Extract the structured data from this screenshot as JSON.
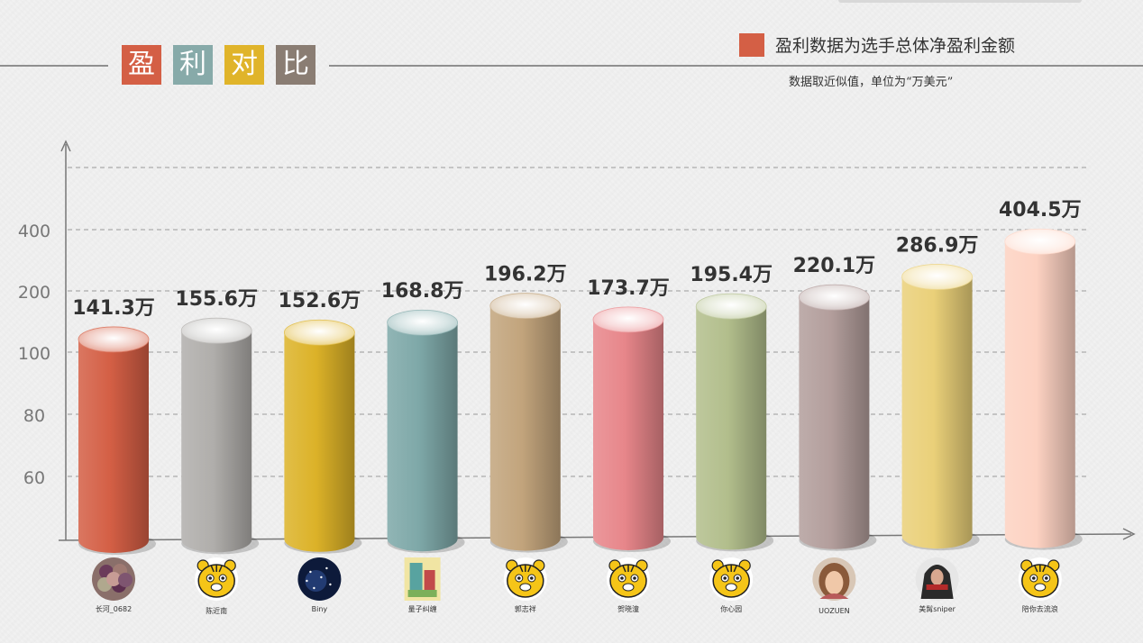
{
  "title_chars": [
    {
      "char": "盈",
      "color": "#d45f45"
    },
    {
      "char": "利",
      "color": "#87aaa9"
    },
    {
      "char": "对",
      "color": "#e0b42a"
    },
    {
      "char": "比",
      "color": "#8a7d73"
    }
  ],
  "legend": {
    "label": "盈利数据为选手总体净盈利金额",
    "color": "#d45f45"
  },
  "note": "数据取近似值，单位为“万美元”",
  "chart_data": {
    "type": "bar",
    "style": "3d-cylinder",
    "grid": "dashed-horizontal",
    "y_ticks": [
      60,
      80,
      100,
      200,
      400
    ],
    "value_suffix": "万",
    "categories": [
      "长河_0682",
      "陈近南",
      "Biny",
      "量子纠缠",
      "郭志祥",
      "贺晓潼",
      "你心园",
      "UOZUEN",
      "美髯sniper",
      "陪你去流浪"
    ],
    "values": [
      141.3,
      155.6,
      152.6,
      168.8,
      196.2,
      173.7,
      195.4,
      220.1,
      286.9,
      404.5
    ],
    "value_labels": [
      "141.3万",
      "155.6万",
      "152.6万",
      "168.8万",
      "196.2万",
      "173.7万",
      "195.4万",
      "220.1万",
      "286.9万",
      "404.5万"
    ],
    "colors": [
      "#d45f45",
      "#b0aeab",
      "#dcb228",
      "#7ea8a8",
      "#c2a47c",
      "#e7868a",
      "#b2be8c",
      "#b39e9c",
      "#ead079",
      "#fdd2c2"
    ],
    "avatar_icons": [
      "fruit-photo-avatar-icon",
      "tiger-cartoon-avatar-icon",
      "starry-sky-avatar-icon",
      "colorful-art-avatar-icon",
      "tiger-cartoon-avatar-icon",
      "tiger-cartoon-avatar-icon",
      "tiger-cartoon-avatar-icon",
      "girl-photo-avatar-icon",
      "hooded-figure-avatar-icon",
      "tiger-cartoon-avatar-icon"
    ]
  }
}
